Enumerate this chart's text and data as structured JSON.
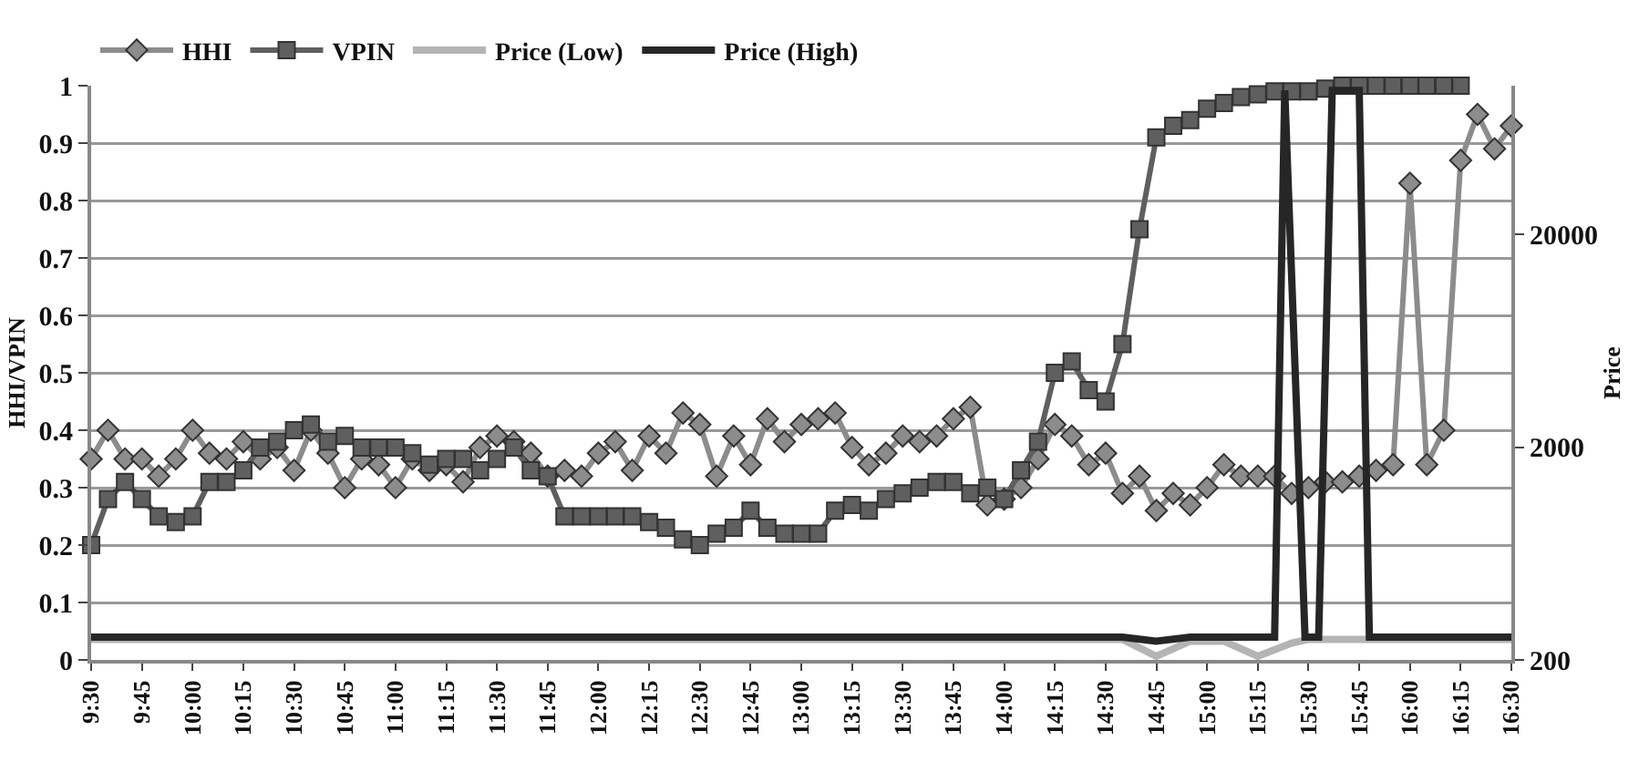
{
  "chart_data": {
    "type": "line",
    "ylabel": "HHI/VPIN",
    "y2label": "Price",
    "xlim": [
      9.5,
      16.5
    ],
    "xticks": [
      {
        "value": 9.5,
        "label": "9:30"
      },
      {
        "value": 9.75,
        "label": "9:45"
      },
      {
        "value": 10,
        "label": "10:00"
      },
      {
        "value": 10.25,
        "label": "10:15"
      },
      {
        "value": 10.5,
        "label": "10:30"
      },
      {
        "value": 10.75,
        "label": "10:45"
      },
      {
        "value": 11,
        "label": "11:00"
      },
      {
        "value": 11.25,
        "label": "11:15"
      },
      {
        "value": 11.5,
        "label": "11:30"
      },
      {
        "value": 11.75,
        "label": "11:45"
      },
      {
        "value": 12,
        "label": "12:00"
      },
      {
        "value": 12.25,
        "label": "12:15"
      },
      {
        "value": 12.5,
        "label": "12:30"
      },
      {
        "value": 12.75,
        "label": "12:45"
      },
      {
        "value": 13,
        "label": "13:00"
      },
      {
        "value": 13.25,
        "label": "13:15"
      },
      {
        "value": 13.5,
        "label": "13:30"
      },
      {
        "value": 13.75,
        "label": "13:45"
      },
      {
        "value": 14,
        "label": "14:00"
      },
      {
        "value": 14.25,
        "label": "14:15"
      },
      {
        "value": 14.5,
        "label": "14:30"
      },
      {
        "value": 14.75,
        "label": "14:45"
      },
      {
        "value": 15,
        "label": "15:00"
      },
      {
        "value": 15.25,
        "label": "15:15"
      },
      {
        "value": 15.5,
        "label": "15:30"
      },
      {
        "value": 15.75,
        "label": "15:45"
      },
      {
        "value": 16,
        "label": "16:00"
      },
      {
        "value": 16.25,
        "label": "16:15"
      },
      {
        "value": 16.5,
        "label": "16:30"
      }
    ],
    "ylim": [
      0,
      1
    ],
    "yticks": [
      0,
      0.1,
      0.2,
      0.3,
      0.4,
      0.5,
      0.6,
      0.7,
      0.8,
      0.9,
      1
    ],
    "y2lim": [
      200,
      100000
    ],
    "y2ticks": [
      200,
      2000,
      20000
    ],
    "log": "y2",
    "grid": "y",
    "legend": "top left",
    "line_style": "solid",
    "series": [
      {
        "name": "HHI",
        "color": "#8c8c8c",
        "marker": "diamond",
        "x": [
          9.5,
          9.583,
          9.667,
          9.75,
          9.833,
          9.917,
          10,
          10.083,
          10.167,
          10.25,
          10.333,
          10.417,
          10.5,
          10.583,
          10.667,
          10.75,
          10.833,
          10.917,
          11,
          11.083,
          11.167,
          11.25,
          11.333,
          11.417,
          11.5,
          11.583,
          11.667,
          11.75,
          11.833,
          11.917,
          12,
          12.083,
          12.167,
          12.25,
          12.333,
          12.417,
          12.5,
          12.583,
          12.667,
          12.75,
          12.833,
          12.917,
          13,
          13.083,
          13.167,
          13.25,
          13.333,
          13.417,
          13.5,
          13.583,
          13.667,
          13.75,
          13.833,
          13.917,
          14,
          14.083,
          14.167,
          14.25,
          14.333,
          14.417,
          14.5,
          14.583,
          14.667,
          14.75,
          14.833,
          14.917,
          15,
          15.083,
          15.167,
          15.25,
          15.333,
          15.417,
          15.5,
          15.583,
          15.667,
          15.75,
          15.833,
          15.917,
          16,
          16.083,
          16.167,
          16.25,
          16.333,
          16.417,
          16.5
        ],
        "values": [
          0.35,
          0.4,
          0.35,
          0.35,
          0.32,
          0.35,
          0.4,
          0.36,
          0.35,
          0.38,
          0.35,
          0.37,
          0.33,
          0.4,
          0.36,
          0.3,
          0.35,
          0.34,
          0.3,
          0.35,
          0.33,
          0.34,
          0.31,
          0.37,
          0.39,
          0.38,
          0.36,
          0.32,
          0.33,
          0.32,
          0.36,
          0.38,
          0.33,
          0.39,
          0.36,
          0.43,
          0.41,
          0.32,
          0.39,
          0.34,
          0.42,
          0.38,
          0.41,
          0.42,
          0.43,
          0.37,
          0.34,
          0.36,
          0.39,
          0.38,
          0.39,
          0.42,
          0.44,
          0.27,
          0.28,
          0.3,
          0.35,
          0.41,
          0.39,
          0.34,
          0.36,
          0.29,
          0.32,
          0.26,
          0.29,
          0.27,
          0.3,
          0.34,
          0.32,
          0.32,
          0.32,
          0.29,
          0.3,
          0.31,
          0.31,
          0.32,
          0.33,
          0.34,
          0.83,
          0.34,
          0.4,
          0.87,
          0.95,
          0.89,
          0.93
        ]
      },
      {
        "name": "VPIN",
        "color": "#5f5f5f",
        "marker": "square",
        "x": [
          9.5,
          9.583,
          9.667,
          9.75,
          9.833,
          9.917,
          10,
          10.083,
          10.167,
          10.25,
          10.333,
          10.417,
          10.5,
          10.583,
          10.667,
          10.75,
          10.833,
          10.917,
          11,
          11.083,
          11.167,
          11.25,
          11.333,
          11.417,
          11.5,
          11.583,
          11.667,
          11.75,
          11.833,
          11.917,
          12,
          12.083,
          12.167,
          12.25,
          12.333,
          12.417,
          12.5,
          12.583,
          12.667,
          12.75,
          12.833,
          12.917,
          13,
          13.083,
          13.167,
          13.25,
          13.333,
          13.417,
          13.5,
          13.583,
          13.667,
          13.75,
          13.833,
          13.917,
          14,
          14.083,
          14.167,
          14.25,
          14.333,
          14.417,
          14.5,
          14.583,
          14.667,
          14.75,
          14.833,
          14.917,
          15,
          15.083,
          15.167,
          15.25,
          15.333,
          15.417,
          15.5,
          15.583,
          15.667,
          15.75,
          15.833,
          15.917,
          16,
          16.083,
          16.167,
          16.25
        ],
        "values": [
          0.2,
          0.28,
          0.31,
          0.28,
          0.25,
          0.24,
          0.25,
          0.31,
          0.31,
          0.33,
          0.37,
          0.38,
          0.4,
          0.41,
          0.38,
          0.39,
          0.37,
          0.37,
          0.37,
          0.36,
          0.34,
          0.35,
          0.35,
          0.33,
          0.35,
          0.37,
          0.33,
          0.32,
          0.25,
          0.25,
          0.25,
          0.25,
          0.25,
          0.24,
          0.23,
          0.21,
          0.2,
          0.22,
          0.23,
          0.26,
          0.23,
          0.22,
          0.22,
          0.22,
          0.26,
          0.27,
          0.26,
          0.28,
          0.29,
          0.3,
          0.31,
          0.31,
          0.29,
          0.3,
          0.28,
          0.33,
          0.38,
          0.5,
          0.52,
          0.47,
          0.45,
          0.55,
          0.75,
          0.91,
          0.93,
          0.94,
          0.96,
          0.97,
          0.98,
          0.985,
          0.99,
          0.99,
          0.99,
          0.995,
          1,
          1,
          1,
          1,
          1,
          1,
          1,
          1
        ]
      },
      {
        "name": "Price (Low)",
        "color": "#b4b4b4",
        "marker": "none",
        "axis": "y2",
        "x": [
          9.5,
          14.583,
          14.75,
          14.917,
          15.083,
          15.25,
          15.417,
          15.5,
          16.5
        ],
        "values": [
          250,
          250,
          208,
          245,
          245,
          208,
          240,
          250,
          250
        ]
      },
      {
        "name": "Price (High)",
        "color": "#262626",
        "marker": "none",
        "axis": "y2",
        "x": [
          9.5,
          14.583,
          14.75,
          14.917,
          15.333,
          15.383,
          15.483,
          15.55,
          15.617,
          15.75,
          15.8,
          16.5
        ],
        "values": [
          256,
          256,
          245,
          256,
          256,
          95000,
          256,
          256,
          95000,
          95000,
          256,
          256
        ]
      }
    ]
  }
}
